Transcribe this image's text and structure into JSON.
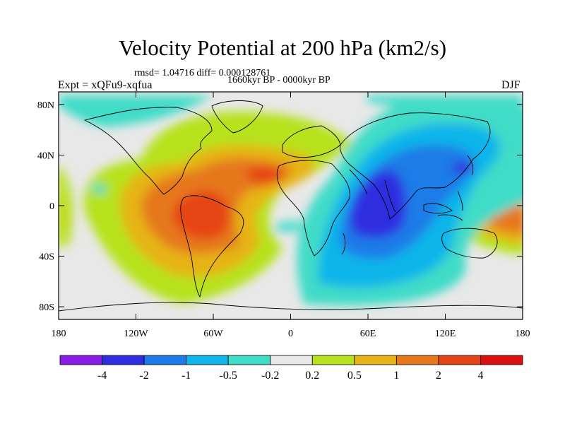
{
  "title": "Velocity Potential at 200 hPa (km2/s)",
  "stats": "rmsd= 1.04716 diff= 0.000128761",
  "period": "1660kyr BP - 0000kyr BP",
  "experiment": "Expt = xQFu9-xqfua",
  "season": "DJF",
  "map": {
    "lat_ticks": [
      "80N",
      "40N",
      "0",
      "40S",
      "80S"
    ],
    "lon_ticks": [
      "180",
      "120W",
      "60W",
      "0",
      "60E",
      "120E",
      "180"
    ]
  },
  "colorbar": {
    "labels": [
      "-4",
      "-2",
      "-1",
      "-0.5",
      "-0.2",
      "0.2",
      "0.5",
      "1",
      "2",
      "4"
    ],
    "colors": [
      "#8a1ee6",
      "#2e2ee0",
      "#1c7be8",
      "#10b5ea",
      "#3fdcc8",
      "#e8e8e8",
      "#b7e21e",
      "#e6b418",
      "#e6781c",
      "#e64418",
      "#dd1010"
    ]
  }
}
